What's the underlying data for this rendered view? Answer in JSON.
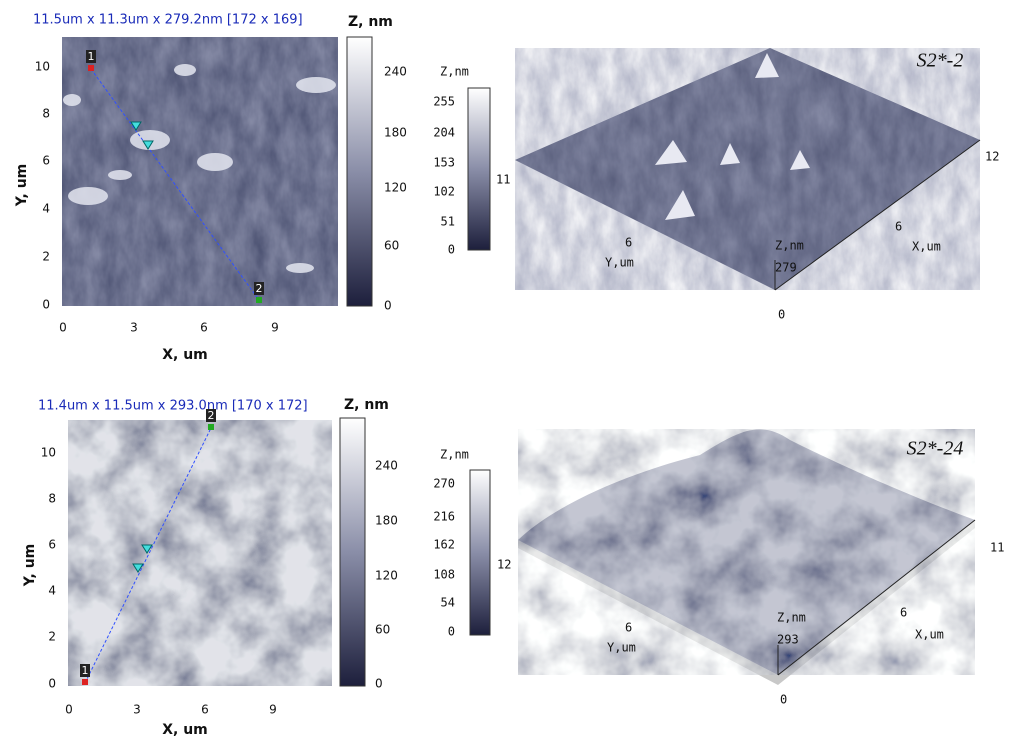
{
  "panels": [
    {
      "scan": {
        "title": "11.5um x 11.3um x 279.2nm [172 x 169]",
        "colorbar_title": "Z, nm",
        "colorbar_ticks": [
          "240",
          "180",
          "120",
          "60",
          "0"
        ],
        "y_ticks": [
          "10",
          "8",
          "6",
          "4",
          "2",
          "0"
        ],
        "x_ticks": [
          "0",
          "3",
          "6",
          "9"
        ],
        "x_label": "X, um",
        "y_label": "Y, um",
        "markers": [
          "1",
          "2"
        ]
      },
      "view3d": {
        "label": "S2*-2",
        "colorbar_title": "Z,nm",
        "colorbar_ticks": [
          "255",
          "204",
          "153",
          "102",
          "51",
          "0"
        ],
        "colorbar_value": "11",
        "x_ticks": [
          "6",
          "12"
        ],
        "x_label": "X,um",
        "y_tick": "6",
        "y_label": "Y,um",
        "z_label": "Z,nm",
        "z_value": "279",
        "origin": "0"
      }
    },
    {
      "scan": {
        "title": "11.4um x 11.5um x 293.0nm [170 x 172]",
        "colorbar_title": "Z, nm",
        "colorbar_ticks": [
          "240",
          "180",
          "120",
          "60",
          "0"
        ],
        "y_ticks": [
          "10",
          "8",
          "6",
          "4",
          "2",
          "0"
        ],
        "x_ticks": [
          "0",
          "3",
          "6",
          "9"
        ],
        "x_label": "X, um",
        "y_label": "Y, um",
        "markers": [
          "2",
          "1"
        ]
      },
      "view3d": {
        "label": "S2*-24",
        "colorbar_title": "Z,nm",
        "colorbar_ticks": [
          "270",
          "216",
          "162",
          "108",
          "54",
          "0"
        ],
        "colorbar_value": "12",
        "x_ticks": [
          "6",
          "11"
        ],
        "x_label": "X,um",
        "y_tick": "6",
        "y_label": "Y,um",
        "z_label": "Z,nm",
        "z_value": "293",
        "origin": "0"
      }
    }
  ]
}
